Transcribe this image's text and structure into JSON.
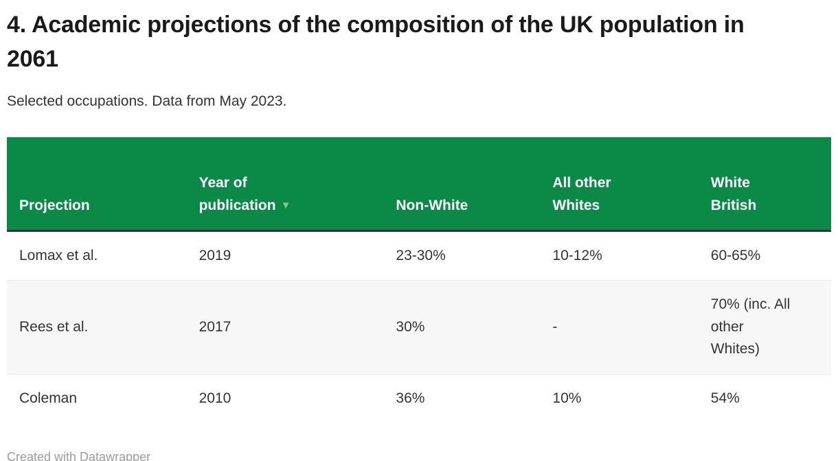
{
  "chart": {
    "title": "4. Academic projections of the composition of the UK population in 2061",
    "subtitle": "Selected occupations. Data from May 2023."
  },
  "table": {
    "columns": [
      {
        "label": "Projection"
      },
      {
        "label": "Year of\npublication",
        "sort_icon": "▼",
        "sorted": "descending"
      },
      {
        "label": "Non-White"
      },
      {
        "label": "All other\nWhites"
      },
      {
        "label": "White\nBritish"
      }
    ],
    "rows": [
      {
        "projection": "Lomax et al.",
        "year": "2019",
        "non_white": "23-30%",
        "all_other_whites": "10-12%",
        "white_british": "60-65%"
      },
      {
        "projection": "Rees et al.",
        "year": "2017",
        "non_white": "30%",
        "all_other_whites": "-",
        "white_british": "70% (inc. All\nother\nWhites)"
      },
      {
        "projection": "Coleman",
        "year": "2010",
        "non_white": "36%",
        "all_other_whites": "10%",
        "white_british": "54%"
      }
    ]
  },
  "footer": {
    "credit": "Created with Datawrapper"
  },
  "colors": {
    "header_bg": "#0b8a47",
    "header_text": "#ffffff",
    "sort_arrow": "#7dc29b",
    "row_alt_bg": "#f7f7f7",
    "dark_border": "#333333",
    "separator": "#e8e8e8",
    "body_text": "#333333",
    "title_text": "#1a1a1a",
    "credit_text": "#9b9b9b"
  }
}
